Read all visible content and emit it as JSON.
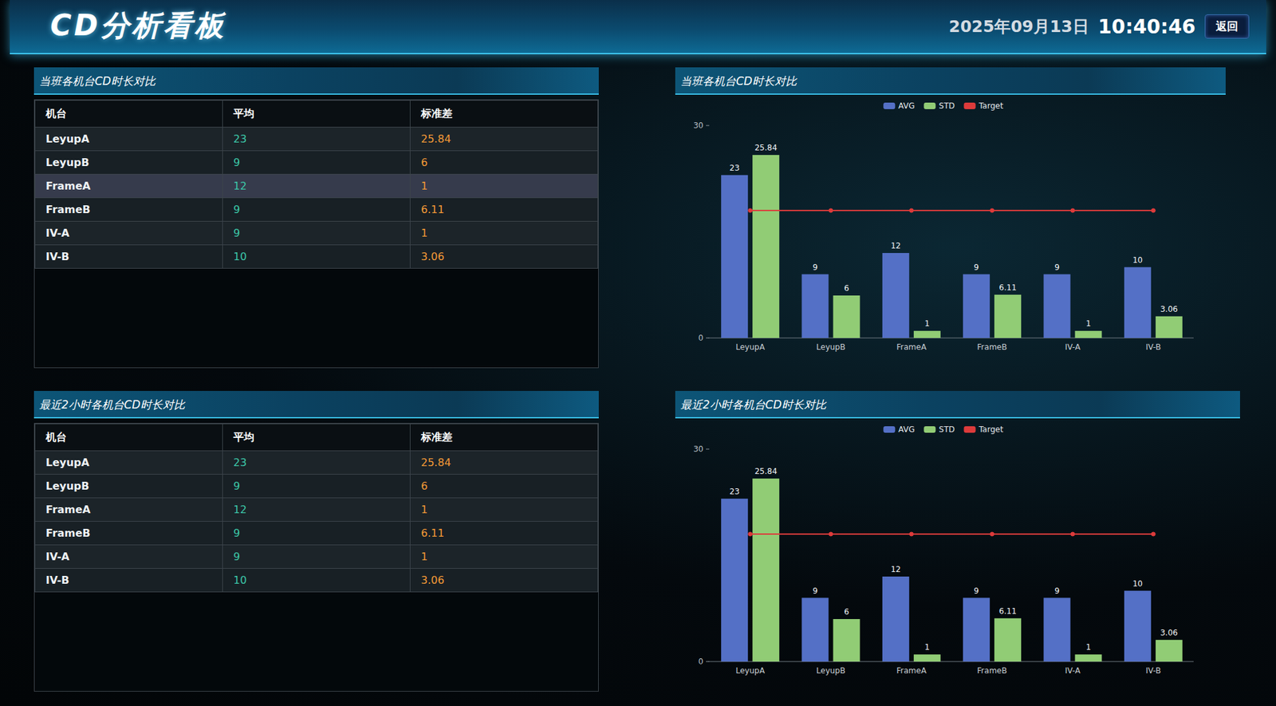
{
  "header": {
    "title": "CD分析看板",
    "date": "2025年09月13日",
    "time": "10:40:46",
    "button": "返回"
  },
  "tables": [
    {
      "title": "当班各机台CD时长对比",
      "columns": [
        "机台",
        "平均",
        "标准差"
      ],
      "rows": [
        [
          "LeyupA",
          23,
          25.84
        ],
        [
          "LeyupB",
          9,
          6
        ],
        [
          "FrameA",
          12,
          1
        ],
        [
          "FrameB",
          9,
          6.11
        ],
        [
          "IV-A",
          9,
          1
        ],
        [
          "IV-B",
          10,
          3.06
        ]
      ]
    },
    {
      "title": "最近2小时各机台CD时长对比",
      "columns": [
        "机台",
        "平均",
        "标准差"
      ],
      "rows": [
        [
          "LeyupA",
          23,
          25.84
        ],
        [
          "LeyupB",
          9,
          6
        ],
        [
          "FrameA",
          12,
          1
        ],
        [
          "FrameB",
          9,
          6.11
        ],
        [
          "IV-A",
          9,
          1
        ],
        [
          "IV-B",
          10,
          3.06
        ]
      ]
    }
  ],
  "chart_data": [
    {
      "type": "bar",
      "title": "当班各机台CD时长对比",
      "categories": [
        "LeyupA",
        "LeyupB",
        "FrameA",
        "FrameB",
        "IV-A",
        "IV-B"
      ],
      "series": [
        {
          "name": "AVG",
          "color": "#5470c6",
          "values": [
            23,
            9,
            12,
            9,
            9,
            10
          ],
          "data_labels": true
        },
        {
          "name": "STD",
          "color": "#91cc75",
          "values": [
            25.84,
            6,
            1,
            6.11,
            1,
            3.06
          ],
          "data_labels": true
        },
        {
          "name": "Target",
          "type": "line",
          "color": "#dd3b3b",
          "marker": "circle",
          "values": [
            18,
            18,
            18,
            18,
            18,
            18
          ]
        }
      ],
      "ylim": [
        0,
        30
      ],
      "yticks": [
        0,
        30
      ],
      "grid": false,
      "legend": "top"
    },
    {
      "type": "bar",
      "title": "最近2小时各机台CD时长对比",
      "categories": [
        "LeyupA",
        "LeyupB",
        "FrameA",
        "FrameB",
        "IV-A",
        "IV-B"
      ],
      "series": [
        {
          "name": "AVG",
          "color": "#5470c6",
          "values": [
            23,
            9,
            12,
            9,
            9,
            10
          ],
          "data_labels": true
        },
        {
          "name": "STD",
          "color": "#91cc75",
          "values": [
            25.84,
            6,
            1,
            6.11,
            1,
            3.06
          ],
          "data_labels": true
        },
        {
          "name": "Target",
          "type": "line",
          "color": "#dd3b3b",
          "marker": "circle",
          "values": [
            18,
            18,
            18,
            18,
            18,
            18
          ]
        }
      ],
      "ylim": [
        0,
        30
      ],
      "yticks": [
        0,
        30
      ],
      "grid": false,
      "legend": "top"
    }
  ]
}
